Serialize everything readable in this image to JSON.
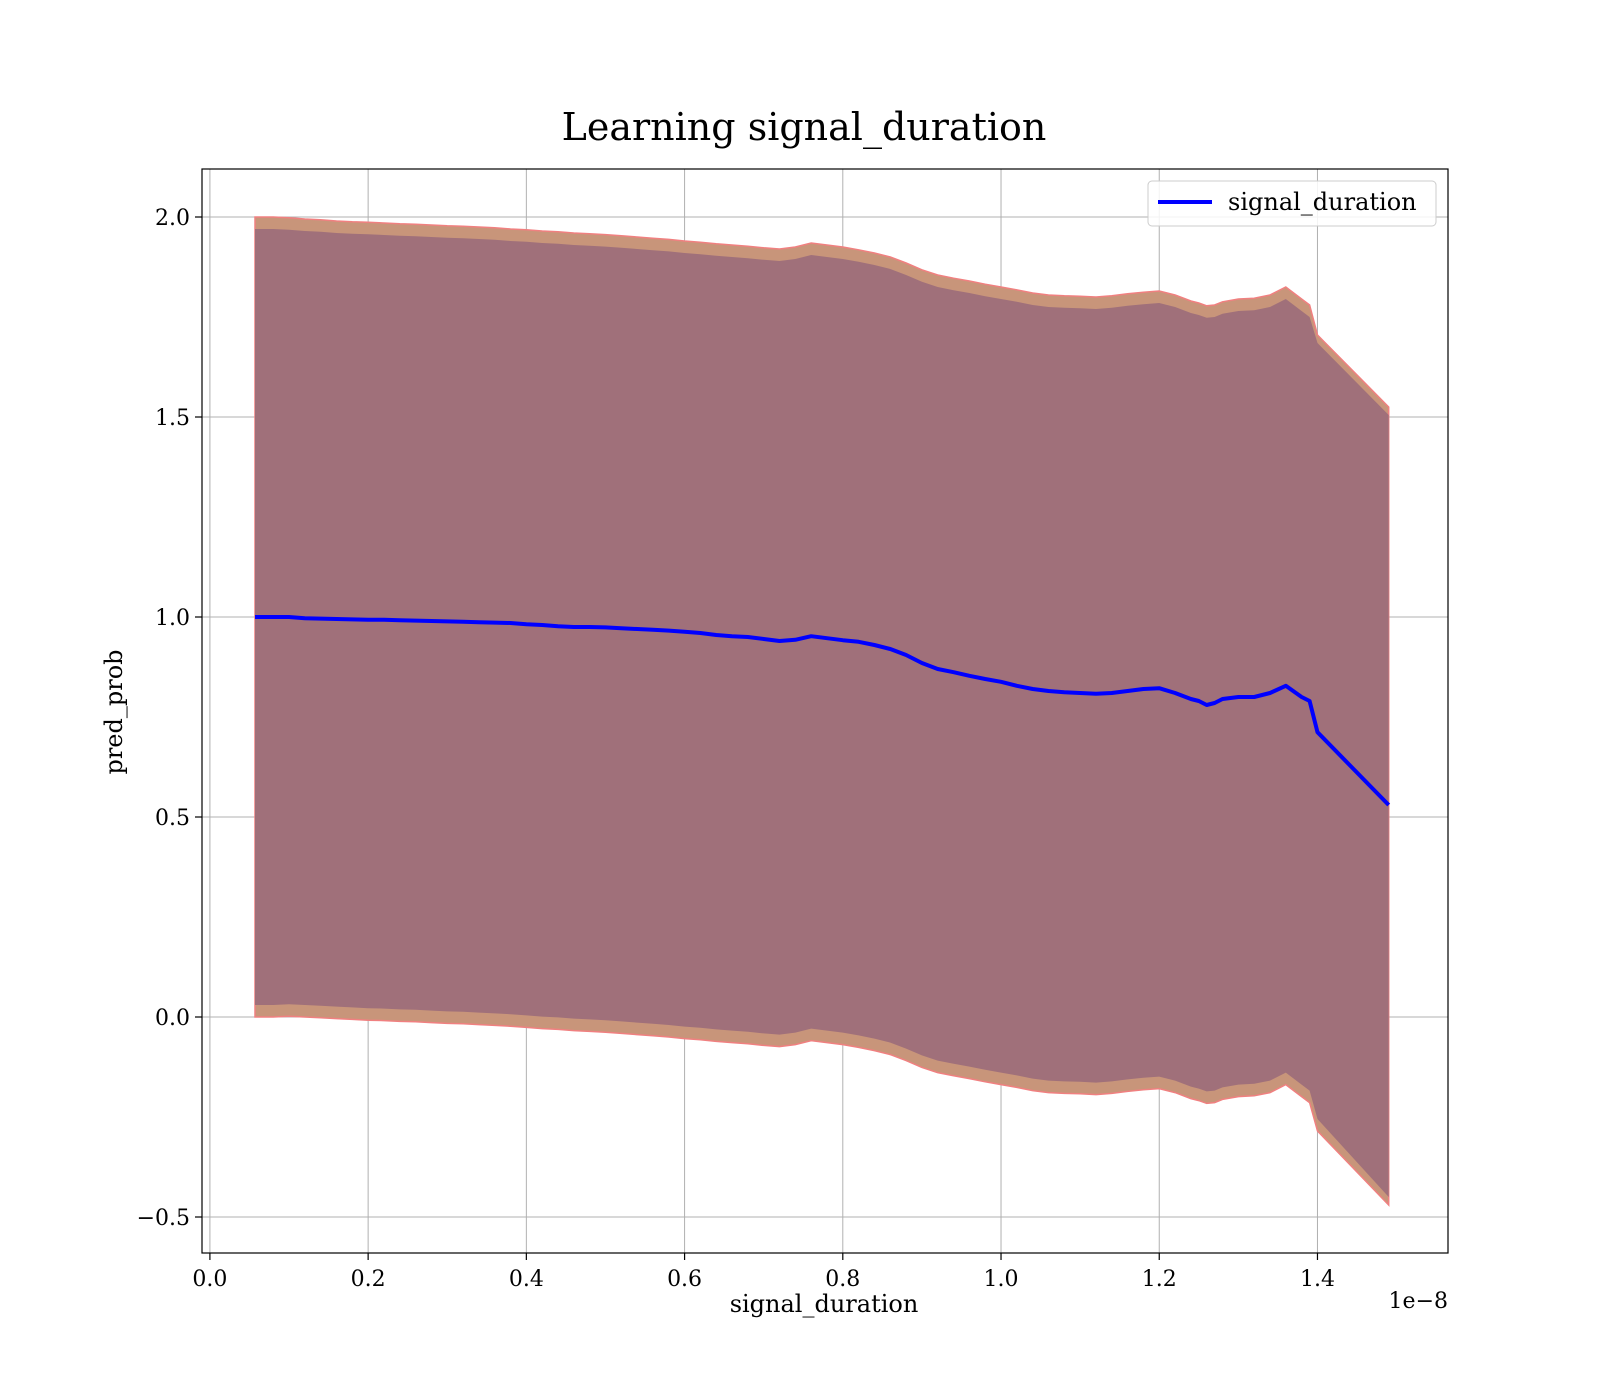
{
  "chart_data": {
    "type": "line",
    "title": "Learning signal_duration",
    "xlabel": "signal_duration",
    "ylabel": "pred_prob",
    "x_offset_text": "1e−8",
    "xlim": [
      -0.01,
      1.565
    ],
    "ylim": [
      -0.59,
      2.12
    ],
    "x_ticks": [
      0.0,
      0.2,
      0.4,
      0.6,
      0.8,
      1.0,
      1.2,
      1.4
    ],
    "x_tick_labels": [
      "0.0",
      "0.2",
      "0.4",
      "0.6",
      "0.8",
      "1.0",
      "1.2",
      "1.4"
    ],
    "y_ticks": [
      -0.5,
      0.0,
      0.5,
      1.0,
      1.5,
      2.0
    ],
    "y_tick_labels": [
      "−0.5",
      "0.0",
      "0.5",
      "1.0",
      "1.5",
      "2.0"
    ],
    "grid": true,
    "legend_position": "top-right",
    "colors": {
      "line": "#0000ff",
      "band_outer": "#c8957a",
      "band_outer_edge": "#f08080",
      "band_inner": "#a0707a"
    },
    "series": [
      {
        "name": "signal_duration",
        "x": [
          0.057,
          0.08,
          0.1,
          0.12,
          0.14,
          0.16,
          0.18,
          0.2,
          0.22,
          0.24,
          0.26,
          0.28,
          0.3,
          0.32,
          0.34,
          0.36,
          0.38,
          0.4,
          0.42,
          0.44,
          0.46,
          0.48,
          0.5,
          0.52,
          0.54,
          0.56,
          0.58,
          0.6,
          0.62,
          0.64,
          0.66,
          0.68,
          0.7,
          0.72,
          0.74,
          0.76,
          0.78,
          0.8,
          0.82,
          0.84,
          0.86,
          0.88,
          0.9,
          0.92,
          0.94,
          0.96,
          0.98,
          1.0,
          1.02,
          1.04,
          1.06,
          1.08,
          1.1,
          1.12,
          1.14,
          1.16,
          1.18,
          1.2,
          1.22,
          1.24,
          1.25,
          1.26,
          1.27,
          1.28,
          1.3,
          1.32,
          1.34,
          1.36,
          1.38,
          1.39,
          1.4,
          1.49
        ],
        "values": [
          1.0,
          1.0,
          1.0,
          0.997,
          0.996,
          0.995,
          0.994,
          0.993,
          0.993,
          0.992,
          0.991,
          0.99,
          0.989,
          0.988,
          0.987,
          0.986,
          0.985,
          0.982,
          0.98,
          0.977,
          0.975,
          0.975,
          0.974,
          0.972,
          0.97,
          0.968,
          0.966,
          0.963,
          0.96,
          0.955,
          0.952,
          0.95,
          0.945,
          0.94,
          0.943,
          0.952,
          0.947,
          0.942,
          0.938,
          0.93,
          0.92,
          0.905,
          0.885,
          0.87,
          0.862,
          0.853,
          0.845,
          0.838,
          0.828,
          0.82,
          0.815,
          0.812,
          0.81,
          0.808,
          0.81,
          0.815,
          0.82,
          0.822,
          0.81,
          0.795,
          0.79,
          0.78,
          0.785,
          0.795,
          0.8,
          0.8,
          0.81,
          0.828,
          0.8,
          0.79,
          0.712,
          0.53
        ]
      }
    ],
    "band_outer": {
      "upper": [
        2.0,
        2.0,
        1.998,
        1.995,
        1.993,
        1.99,
        1.988,
        1.987,
        1.985,
        1.983,
        1.982,
        1.98,
        1.978,
        1.977,
        1.975,
        1.973,
        1.97,
        1.968,
        1.965,
        1.963,
        1.96,
        1.958,
        1.956,
        1.953,
        1.95,
        1.947,
        1.944,
        1.94,
        1.937,
        1.933,
        1.93,
        1.927,
        1.923,
        1.92,
        1.925,
        1.935,
        1.93,
        1.925,
        1.918,
        1.91,
        1.9,
        1.885,
        1.868,
        1.855,
        1.847,
        1.84,
        1.832,
        1.825,
        1.818,
        1.81,
        1.805,
        1.803,
        1.802,
        1.8,
        1.803,
        1.808,
        1.812,
        1.815,
        1.805,
        1.79,
        1.785,
        1.778,
        1.78,
        1.788,
        1.795,
        1.797,
        1.805,
        1.825,
        1.795,
        1.78,
        1.705,
        1.525
      ],
      "lower": [
        0.0,
        0.0,
        0.002,
        0.0,
        -0.002,
        -0.004,
        -0.006,
        -0.008,
        -0.009,
        -0.011,
        -0.012,
        -0.014,
        -0.016,
        -0.017,
        -0.019,
        -0.021,
        -0.023,
        -0.026,
        -0.029,
        -0.031,
        -0.034,
        -0.036,
        -0.038,
        -0.041,
        -0.044,
        -0.047,
        -0.05,
        -0.054,
        -0.057,
        -0.061,
        -0.064,
        -0.067,
        -0.071,
        -0.074,
        -0.069,
        -0.059,
        -0.064,
        -0.069,
        -0.076,
        -0.084,
        -0.094,
        -0.109,
        -0.126,
        -0.139,
        -0.147,
        -0.154,
        -0.162,
        -0.169,
        -0.176,
        -0.184,
        -0.189,
        -0.191,
        -0.192,
        -0.194,
        -0.191,
        -0.186,
        -0.182,
        -0.179,
        -0.189,
        -0.204,
        -0.209,
        -0.216,
        -0.214,
        -0.206,
        -0.199,
        -0.197,
        -0.189,
        -0.169,
        -0.199,
        -0.214,
        -0.285,
        -0.47
      ]
    },
    "band_inner": {
      "upper": [
        1.97,
        1.97,
        1.968,
        1.965,
        1.963,
        1.96,
        1.958,
        1.957,
        1.955,
        1.953,
        1.952,
        1.95,
        1.948,
        1.947,
        1.945,
        1.943,
        1.94,
        1.938,
        1.935,
        1.933,
        1.93,
        1.928,
        1.926,
        1.923,
        1.92,
        1.917,
        1.914,
        1.91,
        1.907,
        1.903,
        1.9,
        1.897,
        1.893,
        1.89,
        1.895,
        1.905,
        1.9,
        1.895,
        1.888,
        1.88,
        1.87,
        1.855,
        1.838,
        1.825,
        1.817,
        1.81,
        1.802,
        1.795,
        1.788,
        1.78,
        1.775,
        1.773,
        1.772,
        1.77,
        1.773,
        1.778,
        1.782,
        1.785,
        1.775,
        1.76,
        1.755,
        1.748,
        1.75,
        1.758,
        1.765,
        1.767,
        1.775,
        1.795,
        1.765,
        1.75,
        1.685,
        1.505
      ],
      "lower": [
        0.03,
        0.03,
        0.032,
        0.03,
        0.028,
        0.026,
        0.024,
        0.022,
        0.021,
        0.019,
        0.018,
        0.016,
        0.014,
        0.013,
        0.011,
        0.009,
        0.007,
        0.004,
        0.001,
        -0.001,
        -0.004,
        -0.006,
        -0.008,
        -0.011,
        -0.014,
        -0.017,
        -0.02,
        -0.024,
        -0.027,
        -0.031,
        -0.034,
        -0.037,
        -0.041,
        -0.044,
        -0.039,
        -0.029,
        -0.034,
        -0.039,
        -0.046,
        -0.054,
        -0.064,
        -0.079,
        -0.096,
        -0.109,
        -0.117,
        -0.124,
        -0.132,
        -0.139,
        -0.146,
        -0.154,
        -0.159,
        -0.161,
        -0.162,
        -0.164,
        -0.161,
        -0.156,
        -0.152,
        -0.149,
        -0.159,
        -0.174,
        -0.179,
        -0.186,
        -0.184,
        -0.176,
        -0.169,
        -0.167,
        -0.159,
        -0.139,
        -0.169,
        -0.184,
        -0.255,
        -0.45
      ]
    }
  }
}
